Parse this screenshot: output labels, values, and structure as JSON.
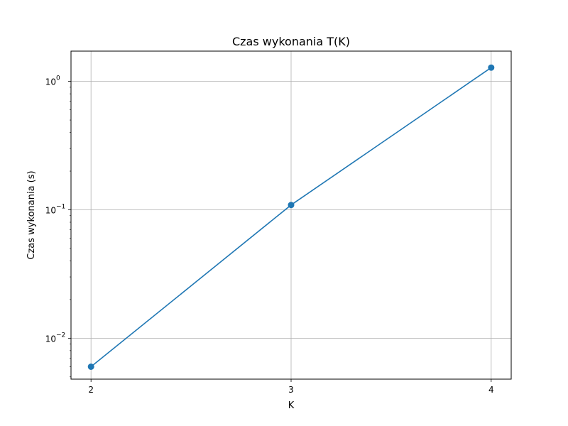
{
  "chart_data": {
    "type": "line",
    "title": "Czas wykonania T(K)",
    "xlabel": "K",
    "ylabel": "Czas wykonania (s)",
    "x": [
      2,
      3,
      4
    ],
    "series": [
      {
        "values": [
          0.006,
          0.109,
          1.28
        ],
        "color": "#1f77b4",
        "marker": "circle"
      }
    ],
    "x_ticks": [
      {
        "value": 2,
        "label": "2"
      },
      {
        "value": 3,
        "label": "3"
      },
      {
        "value": 4,
        "label": "4"
      }
    ],
    "y_scale": "log",
    "y_ticks": [
      {
        "value": 0.01,
        "base": "10",
        "exp": "−2"
      },
      {
        "value": 0.1,
        "base": "10",
        "exp": "−1"
      },
      {
        "value": 1,
        "base": "10",
        "exp": "0"
      }
    ],
    "xlim": [
      1.9,
      4.1
    ],
    "ylim": [
      0.0048,
      1.72
    ],
    "grid": true,
    "legend": false
  }
}
